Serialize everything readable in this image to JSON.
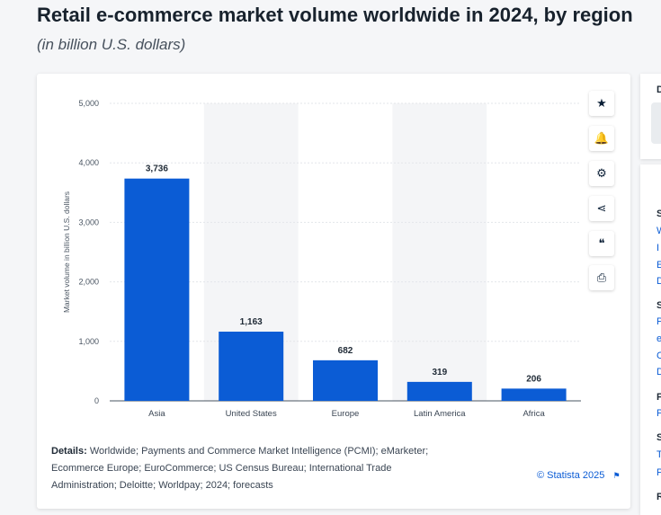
{
  "page": {
    "title": "Retail e-commerce market volume worldwide in 2024, by region",
    "subtitle": "(in billion U.S. dollars)"
  },
  "toolbar": {
    "buttons": [
      {
        "name": "star-icon",
        "glyph": "★"
      },
      {
        "name": "bell-icon",
        "glyph": "🔔"
      },
      {
        "name": "gear-icon",
        "glyph": "⚙"
      },
      {
        "name": "share-icon",
        "glyph": "⋖"
      },
      {
        "name": "quote-icon",
        "glyph": "❝"
      },
      {
        "name": "print-icon",
        "glyph": "⎙"
      }
    ]
  },
  "details": {
    "label": "Details:",
    "text": "Worldwide; Payments and Commerce Market Intelligence (PCMI); eMarketer; Ecommerce Europe; EuroCommerce; US Census Bureau; International Trade Administration; Deloitte; Worldpay; 2024; forecasts"
  },
  "credit": "© Statista 2025",
  "sidebar": {
    "top_letter": "D",
    "letters": [
      "S",
      "W",
      "I",
      "E",
      "D",
      "S",
      "P",
      "e",
      "C",
      "D",
      "F",
      "P",
      "S",
      "T",
      "P",
      "R"
    ]
  },
  "colors": {
    "bar": "#0b5cd5",
    "stripe": "#f4f5f7",
    "grid": "#e3e6ea",
    "text": "#3a4553"
  },
  "chart_data": {
    "type": "bar",
    "categories": [
      "Asia",
      "United States",
      "Europe",
      "Latin America",
      "Africa"
    ],
    "values": [
      3736,
      1163,
      682,
      319,
      206
    ],
    "value_labels": [
      "3,736",
      "1,163",
      "682",
      "319",
      "206"
    ],
    "title": "Retail e-commerce market volume worldwide in 2024, by region",
    "xlabel": "",
    "ylabel": "Market volume in billion U.S. dollars",
    "ylim": [
      0,
      5000
    ],
    "yticks": [
      0,
      1000,
      2000,
      3000,
      4000,
      5000
    ],
    "ytick_labels": [
      "0",
      "1,000",
      "2,000",
      "3,000",
      "4,000",
      "5,000"
    ],
    "grid": true,
    "legend": "none"
  }
}
